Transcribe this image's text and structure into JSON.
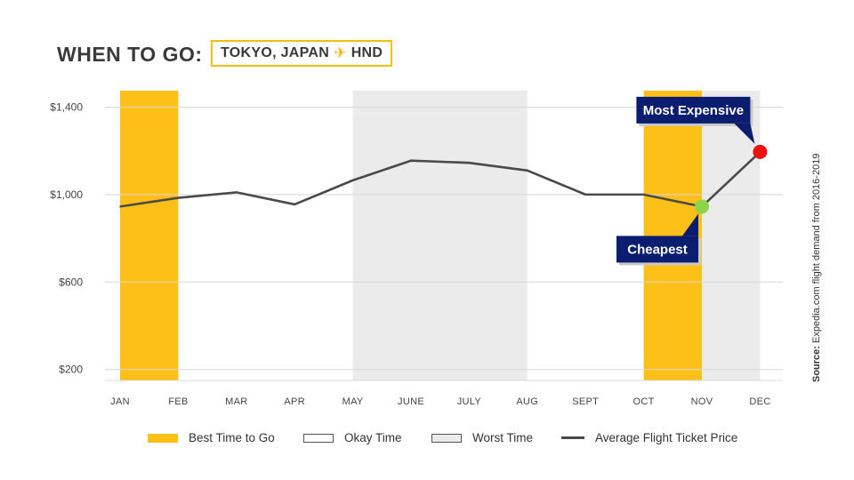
{
  "header": {
    "title": "WHEN TO GO:",
    "destination": "TOKYO, JAPAN",
    "airport": "HND",
    "plane_icon": "airplane-icon",
    "accent_color": "#f5c000"
  },
  "source": {
    "prefix": "Source:",
    "text": " Expedia.com flight demand from 2016-2019"
  },
  "chart_data": {
    "type": "line",
    "categories": [
      "JAN",
      "FEB",
      "MAR",
      "APR",
      "MAY",
      "JUNE",
      "JULY",
      "AUG",
      "SEPT",
      "OCT",
      "NOV",
      "DEC"
    ],
    "series": [
      {
        "name": "Average Flight Ticket Price",
        "values": [
          945,
          985,
          1010,
          955,
          1065,
          1155,
          1145,
          1110,
          1000,
          1000,
          945,
          1195
        ],
        "color": "#4a4a4a"
      }
    ],
    "yticks": [
      {
        "value": 200,
        "label": "$200"
      },
      {
        "value": 600,
        "label": "$600"
      },
      {
        "value": 1000,
        "label": "$1,000"
      },
      {
        "value": 1400,
        "label": "$1,400"
      }
    ],
    "ylim": [
      150,
      1475
    ],
    "grid": true,
    "bands": [
      {
        "from": "JAN",
        "to": "FEB",
        "kind": "best",
        "color": "#fdc018"
      },
      {
        "from": "MAY",
        "to": "AUG",
        "kind": "worst",
        "color": "#ebebeb"
      },
      {
        "from": "OCT",
        "to": "NOV",
        "kind": "best",
        "color": "#fdc018"
      },
      {
        "from": "NOV",
        "to": "DEC",
        "kind": "worst",
        "color": "#ebebeb"
      }
    ],
    "annotations": [
      {
        "label": "Most Expensive",
        "category": "DEC",
        "value": 1195,
        "marker_color": "#ee1111",
        "placement": "above-left"
      },
      {
        "label": "Cheapest",
        "category": "NOV",
        "value": 945,
        "marker_color": "#8ed44a",
        "placement": "below-left"
      }
    ],
    "callout_color": "#0b1d6e"
  },
  "legend": {
    "placement": "bottom",
    "items": [
      {
        "label": "Best Time to Go",
        "style": "best"
      },
      {
        "label": "Okay Time",
        "style": "okay"
      },
      {
        "label": "Worst Time",
        "style": "worst"
      },
      {
        "label": "Average Flight Ticket Price",
        "style": "line"
      }
    ]
  }
}
